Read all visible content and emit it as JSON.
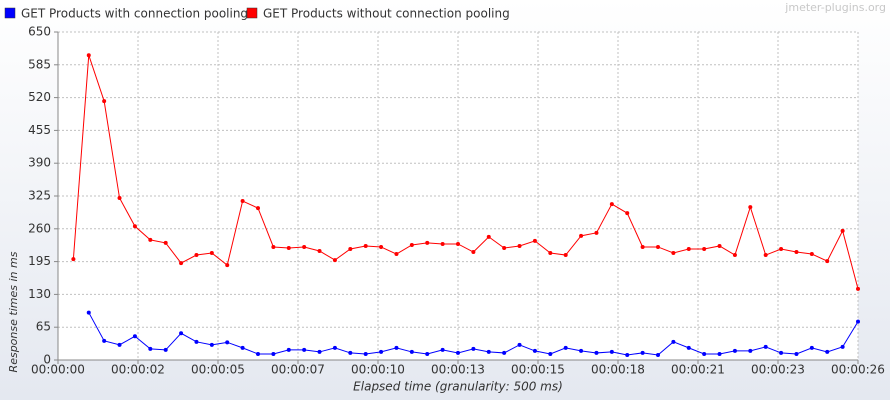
{
  "chart_data": {
    "type": "line",
    "watermark": "jmeter-plugins.org",
    "x_label": "Elapsed time (granularity: 500 ms)",
    "y_label": "Response times in ms",
    "x": [
      0.5,
      1,
      1.5,
      2,
      2.5,
      3,
      3.5,
      4,
      4.5,
      5,
      5.5,
      6,
      6.5,
      7,
      7.5,
      8,
      8.5,
      9,
      9.5,
      10,
      10.5,
      11,
      11.5,
      12,
      12.5,
      13,
      13.5,
      14,
      14.5,
      15,
      15.5,
      16,
      16.5,
      17,
      17.5,
      18,
      18.5,
      19,
      19.5,
      20,
      20.5,
      21,
      21.5,
      22,
      22.5,
      23,
      23.5,
      24,
      24.5,
      25,
      25.5,
      26
    ],
    "series": [
      {
        "name": "GET Products with connection pooling",
        "color": "#0000ff",
        "values": [
          null,
          94,
          38,
          30,
          47,
          22,
          20,
          53,
          36,
          30,
          35,
          24,
          12,
          12,
          20,
          20,
          16,
          24,
          14,
          12,
          16,
          24,
          16,
          12,
          20,
          14,
          22,
          16,
          14,
          30,
          18,
          12,
          24,
          18,
          14,
          16,
          10,
          14,
          10,
          36,
          24,
          12,
          12,
          18,
          18,
          26,
          14,
          12,
          24,
          16,
          26,
          76
        ]
      },
      {
        "name": "GET Products without connection pooling",
        "color": "#ff0000",
        "values": [
          200,
          604,
          513,
          321,
          265,
          238,
          232,
          192,
          208,
          212,
          188,
          315,
          301,
          224,
          222,
          224,
          216,
          198,
          220,
          226,
          224,
          210,
          228,
          232,
          230,
          230,
          214,
          244,
          222,
          226,
          236,
          212,
          208,
          246,
          252,
          309,
          291,
          224,
          224,
          212,
          220,
          220,
          226,
          208,
          303,
          208,
          220,
          214,
          210,
          196,
          256,
          141
        ]
      }
    ],
    "xlim": [
      0,
      26
    ],
    "xticks": [
      {
        "value": 0,
        "label": "00:00:00"
      },
      {
        "value": 2.6,
        "label": "00:00:02"
      },
      {
        "value": 5.2,
        "label": "00:00:05"
      },
      {
        "value": 7.8,
        "label": "00:00:07"
      },
      {
        "value": 10.4,
        "label": "00:00:10"
      },
      {
        "value": 13,
        "label": "00:00:13"
      },
      {
        "value": 15.6,
        "label": "00:00:15"
      },
      {
        "value": 18.2,
        "label": "00:00:18"
      },
      {
        "value": 20.8,
        "label": "00:00:21"
      },
      {
        "value": 23.4,
        "label": "00:00:23"
      },
      {
        "value": 26,
        "label": "00:00:26"
      }
    ],
    "ylim": [
      0,
      650
    ],
    "yticks": [
      0,
      65,
      130,
      195,
      260,
      325,
      390,
      455,
      520,
      585,
      650
    ],
    "grid": true
  }
}
